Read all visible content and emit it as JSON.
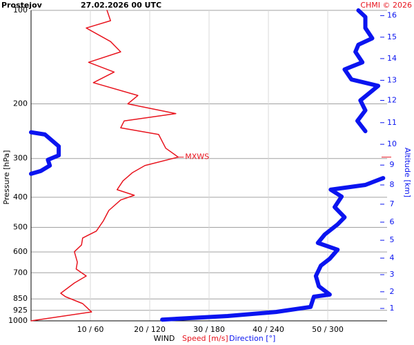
{
  "chart_data": {
    "type": "line",
    "title": "Prostejov",
    "subtitle": "27.02.2026 00 UTC",
    "credit": "CHMI © 2026",
    "ylabel": "Pressure [hPa]",
    "xlabel": "WIND",
    "log_y": true,
    "ylim": [
      100,
      1000
    ],
    "yticks": [
      100,
      200,
      300,
      400,
      500,
      600,
      700,
      850,
      925,
      1000
    ],
    "xlim": [
      0,
      60
    ],
    "xticks": [
      {
        "value": 10,
        "label": "10 / 60"
      },
      {
        "value": 20,
        "label": "20 / 120"
      },
      {
        "value": 30,
        "label": "30 / 180"
      },
      {
        "value": 40,
        "label": "40 / 240"
      },
      {
        "value": 50,
        "label": "50 / 300"
      }
    ],
    "x2lim": [
      0,
      360
    ],
    "grid": true,
    "series": [
      {
        "name": "Speed [m/s]",
        "color": "#e8141e",
        "values": [
          0,
          10.2,
          8.7,
          5.8,
          5.0,
          7.3,
          9.3,
          7.6,
          7.8,
          7.3,
          8.5,
          8.7,
          11.0,
          12.2,
          13.1,
          15.1,
          17.4,
          14.5,
          15.5,
          17.1,
          19.2,
          24.8,
          22.7,
          21.5,
          15.1,
          15.7,
          24.4,
          16.3,
          18.0,
          10.5,
          14.0,
          9.7,
          15.1,
          13.4,
          9.3,
          13.4,
          12.8
        ],
        "pressure": [
          1000,
          936,
          880,
          836,
          815,
          755,
          717,
          681,
          647,
          599,
          570,
          541,
          514,
          476,
          441,
          408,
          394,
          378,
          354,
          333,
          316,
          297,
          278,
          251,
          239,
          227,
          215,
          200,
          188,
          171,
          158,
          147,
          136,
          126,
          114,
          108,
          100
        ]
      },
      {
        "name": "Direction [°]",
        "color": "#0a14f0",
        "axis": "x2",
        "values": [
          132.6,
          198.8,
          247.7,
          282.6,
          286,
          302,
          291,
          288,
          293,
          302,
          310,
          290,
          297,
          310,
          317,
          307,
          314,
          303,
          338,
          356,
          null,
          0,
          10,
          19,
          17,
          28,
          28,
          14,
          0,
          null,
          338,
          330,
          338,
          333,
          351,
          324,
          317,
          335,
          328,
          331,
          345,
          338,
          338,
          331
        ],
        "pressure": [
          991,
          965,
          936,
          902,
          836,
          823,
          774,
          717,
          664,
          631,
          590,
          561,
          527,
          489,
          464,
          430,
          398,
          378,
          365,
          347,
          null,
          336,
          329,
          316,
          303,
          293,
          274,
          251,
          247,
          null,
          245,
          227,
          210,
          195,
          175,
          167,
          155,
          147,
          136,
          129,
          123,
          114,
          105,
          100
        ]
      }
    ],
    "annotations": [
      {
        "text": "MXWS",
        "value": 24.8,
        "pressure": 297
      }
    ],
    "altitude_axis": {
      "label": "Altitude [km]",
      "color": "#0a14f0",
      "ticks": [
        1,
        2,
        3,
        4,
        5,
        6,
        7,
        8,
        9,
        10,
        11,
        12,
        13,
        14,
        15,
        16
      ],
      "pressure": [
        912,
        806,
        710,
        628,
        550,
        481,
        421,
        365,
        315,
        270,
        230,
        195,
        168,
        143,
        122,
        104
      ]
    }
  }
}
